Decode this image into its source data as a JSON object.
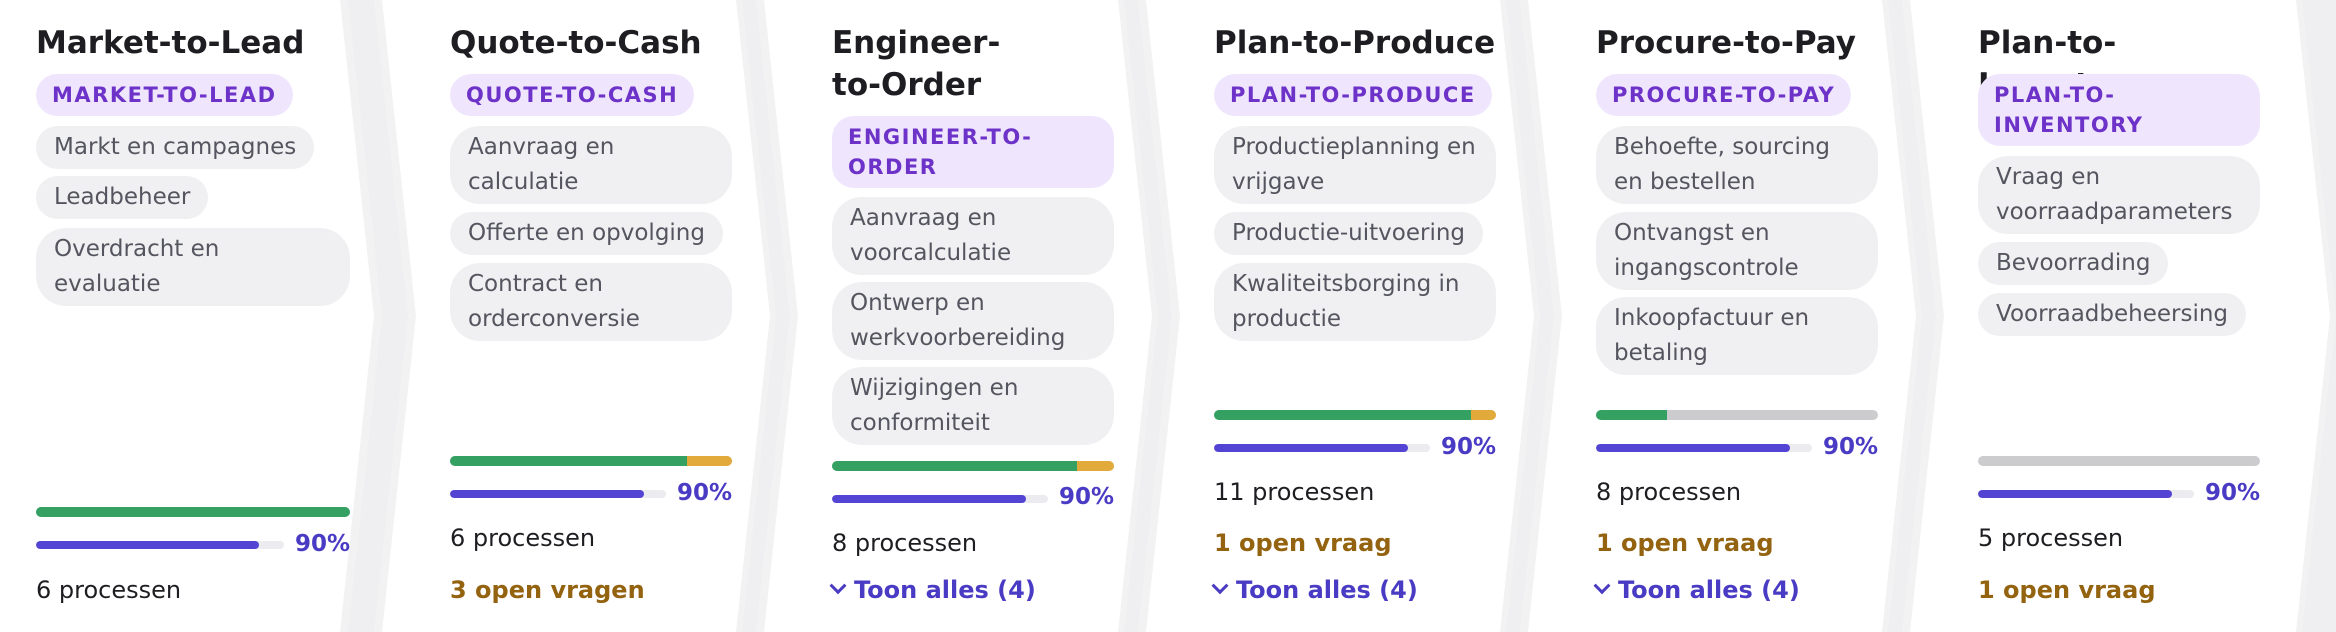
{
  "stages": [
    {
      "title": "Market-to-Lead",
      "badge": "MARKET-TO-LEAD",
      "items": [
        "Markt en campagnes",
        "Leadbeheer",
        "Overdracht en evaluatie"
      ],
      "status_segments": {
        "green": 1.0,
        "yellow": 0.0
      },
      "progress_percent": 90,
      "progress_label": "90%",
      "processes": "6 processen"
    },
    {
      "title": "Quote-to-Cash",
      "badge": "QUOTE-TO-CASH",
      "items": [
        "Aanvraag en calculatie",
        "Offerte en opvolging",
        "Contract en orderconversie"
      ],
      "status_segments": {
        "green": 0.84,
        "yellow": 0.16
      },
      "progress_percent": 90,
      "progress_label": "90%",
      "processes": "6 processen",
      "open_questions": "3 open vragen"
    },
    {
      "title": "Engineer-to-Order",
      "badge": "ENGINEER-TO-ORDER",
      "items": [
        "Aanvraag en voorcalculatie",
        "Ontwerp en werkvoorbereiding",
        "Wijzigingen en conformiteit"
      ],
      "status_segments": {
        "green": 0.87,
        "yellow": 0.13
      },
      "progress_percent": 90,
      "progress_label": "90%",
      "processes": "8 processen",
      "show_all": "Toon alles (4)"
    },
    {
      "title": "Plan-to-Produce",
      "badge": "PLAN-TO-PRODUCE",
      "items": [
        "Productieplanning en vrijgave",
        "Productie-uitvoering",
        "Kwaliteitsborging in productie"
      ],
      "status_segments": {
        "green": 0.91,
        "yellow": 0.09
      },
      "progress_percent": 90,
      "progress_label": "90%",
      "processes": "11 processen",
      "open_questions": "1 open vraag",
      "show_all": "Toon alles (4)"
    },
    {
      "title": "Procure-to-Pay",
      "badge": "PROCURE-TO-PAY",
      "items": [
        "Behoefte, sourcing en bestellen",
        "Ontvangst en ingangscontrole",
        "Inkoopfactuur en betaling"
      ],
      "status_segments": {
        "green": 0.25,
        "yellow": 0.0
      },
      "progress_percent": 90,
      "progress_label": "90%",
      "processes": "8 processen",
      "open_questions": "1 open vraag",
      "show_all": "Toon alles (4)"
    },
    {
      "title": "Plan-to-Inventory",
      "badge": "PLAN-TO-INVENTORY",
      "items": [
        "Vraag en voorraadparameters",
        "Bevoorrading",
        "Voorraadbeheersing"
      ],
      "status_segments": {
        "green": 0.0,
        "yellow": 0.0
      },
      "progress_percent": 90,
      "progress_label": "90%",
      "processes": "5 processen",
      "open_questions": "1 open vraag"
    }
  ],
  "colors": {
    "green": "#34a163",
    "yellow": "#e1aa3a",
    "grey": "#cccccf",
    "progress": "#5444d4",
    "badge_text": "#6d33c9",
    "badge_bg": "#efe6fd",
    "open_text": "#946310"
  },
  "icons": {
    "show_all": "chevron-down-icon"
  }
}
